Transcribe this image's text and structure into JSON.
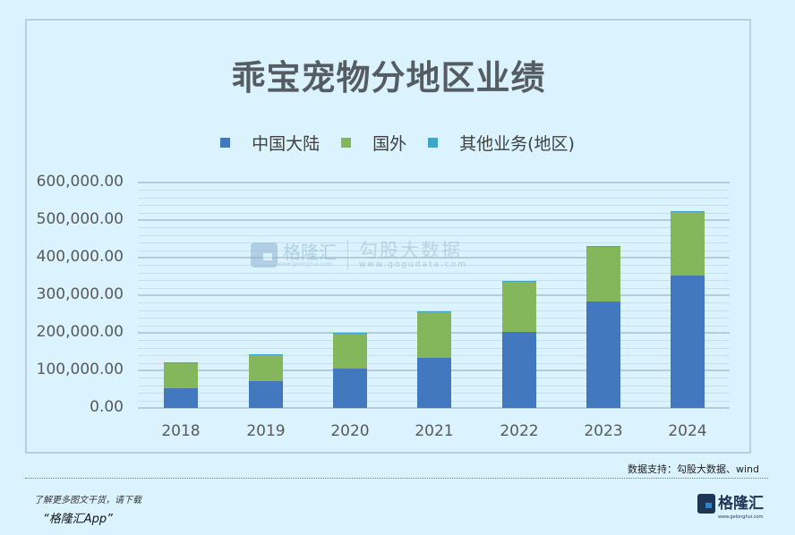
{
  "title": "乖宝宠物分地区业绩",
  "legend": [
    {
      "label": "中国大陆",
      "color": "#4178be"
    },
    {
      "label": "国外",
      "color": "#84b65b"
    },
    {
      "label": "其他业务(地区)",
      "color": "#3ea6c8"
    }
  ],
  "y_ticks": [
    "600,000.00",
    "500,000.00",
    "400,000.00",
    "300,000.00",
    "200,000.00",
    "100,000.00",
    "0.00"
  ],
  "watermark": {
    "brand": "格隆汇",
    "brand_url": "www.gelonghui.com",
    "partner": "勾股大数据",
    "partner_url": "www.gogudata.com"
  },
  "footer": {
    "source": "数据支持：勾股大数据、wind",
    "promo_line1": "了解更多图文干货，请下载",
    "promo_line2": "“格隆汇App”",
    "logo_text": "格隆汇",
    "logo_url": "www.gelonghui.com"
  },
  "chart_data": {
    "type": "bar",
    "stacked": true,
    "title": "乖宝宠物分地区业绩",
    "categories": [
      "2018",
      "2019",
      "2020",
      "2021",
      "2022",
      "2023",
      "2024"
    ],
    "series": [
      {
        "name": "中国大陆",
        "color": "#4178be",
        "values": [
          52000,
          72000,
          104000,
          133000,
          202000,
          284000,
          353000
        ]
      },
      {
        "name": "国外",
        "color": "#84b65b",
        "values": [
          69000,
          69000,
          96000,
          124000,
          135000,
          146000,
          171000
        ]
      },
      {
        "name": "其他业务(地区)",
        "color": "#3ea6c8",
        "values": [
          1000,
          1000,
          1000,
          1000,
          1000,
          1000,
          1000
        ]
      }
    ],
    "xlabel": "",
    "ylabel": "",
    "ylim": [
      0,
      600000
    ],
    "y_tick_step": 100000,
    "grid": true,
    "legend_position": "top"
  }
}
